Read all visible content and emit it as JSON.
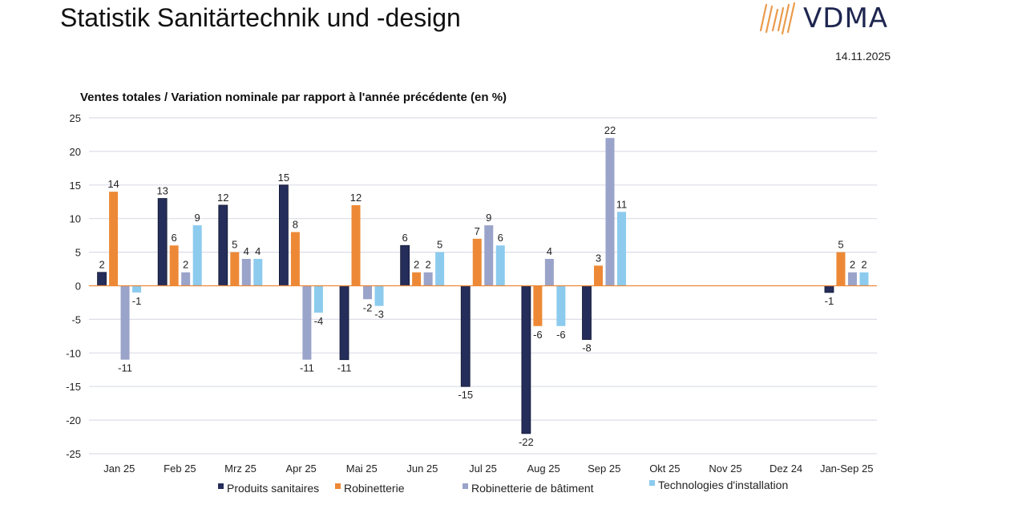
{
  "header": {
    "title": "Statistik Sanitärtechnik und -design",
    "logo_text": "VDMA",
    "logo_icon": "vdma-stripes-logo-icon",
    "date": "14.11.2025"
  },
  "colors": {
    "produits_sanitaires": "#252d5a",
    "robinetterie": "#ed8936",
    "robinetterie_batiment": "#9aa3c9",
    "technologies_installation": "#8ccbee",
    "zero_line": "#ed8936",
    "grid": "#dcdde8",
    "logo_orange": "#e8913a",
    "logo_navy": "#1e2650"
  },
  "chart_data": {
    "type": "bar",
    "title": "Ventes totales / Variation nominale par rapport à l'année précédente (en %)",
    "xlabel": "",
    "ylabel": "",
    "ylim": [
      -25,
      25
    ],
    "yticks": [
      25,
      20,
      15,
      10,
      5,
      0,
      -5,
      -10,
      -15,
      -20,
      -25
    ],
    "grid": true,
    "legend_position": "bottom",
    "categories": [
      "Jan 25",
      "Feb 25",
      "Mrz 25",
      "Apr 25",
      "Mai 25",
      "Jun 25",
      "Jul 25",
      "Aug 25",
      "Sep 25",
      "Okt 25",
      "Nov 25",
      "Dez 24",
      "Jan-Sep 25"
    ],
    "series": [
      {
        "name": "Produits sanitaires",
        "color": "#252d5a",
        "values": [
          2,
          13,
          12,
          15,
          -11,
          6,
          -15,
          -22,
          -8,
          null,
          null,
          null,
          -1
        ]
      },
      {
        "name": "Robinetterie",
        "color": "#ed8936",
        "values": [
          14,
          6,
          5,
          8,
          12,
          2,
          7,
          -6,
          3,
          null,
          null,
          null,
          5
        ]
      },
      {
        "name": "Robinetterie de bâtiment",
        "color": "#9aa3c9",
        "values": [
          -11,
          2,
          4,
          -11,
          -2,
          2,
          9,
          4,
          22,
          null,
          null,
          null,
          2
        ]
      },
      {
        "name": "Technologies d'installation",
        "color": "#8ccbee",
        "values": [
          -1,
          9,
          4,
          -4,
          -3,
          5,
          6,
          -6,
          11,
          null,
          null,
          null,
          2
        ]
      }
    ]
  }
}
